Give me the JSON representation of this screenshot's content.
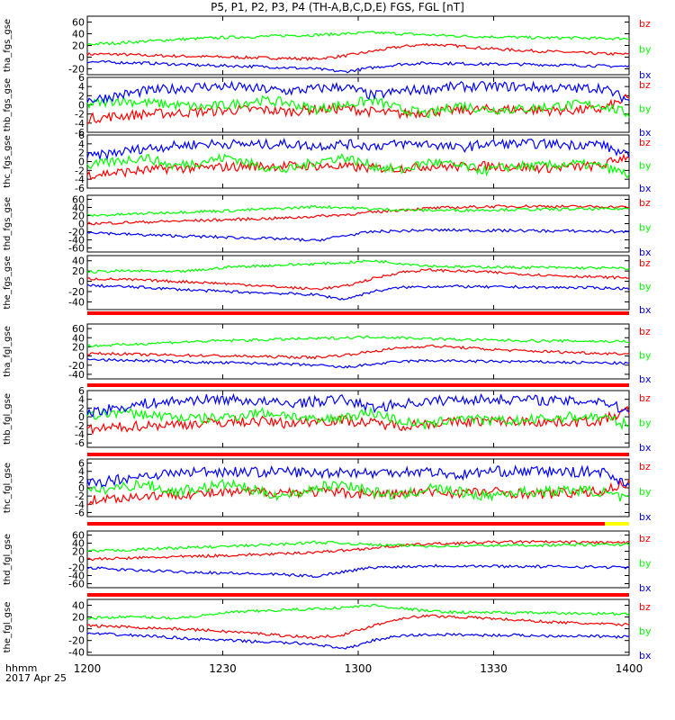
{
  "title": "P5, P1, P2, P3, P4 (TH-A,B,C,D,E) FGS, FGL [nT]",
  "footer": {
    "time_label": "hhmm",
    "date_label": "2017 Apr 25"
  },
  "chart_data": {
    "type": "line",
    "title": "P5, P1, P2, P3, P4 (TH-A,B,C,D,E) FGS, FGL [nT]",
    "xaxis": {
      "range_hhmm": [
        "1200",
        "1400"
      ],
      "ticks": [
        "1200",
        "1230",
        "1300",
        "1330",
        "1400"
      ]
    },
    "series_colors": {
      "bx": "#0000ff",
      "by": "#00ff00",
      "bz": "#ff0000"
    },
    "panels": [
      {
        "ylabel": "tha_fgs_gse",
        "ylim": [
          -30,
          70
        ],
        "yticks": [
          60,
          40,
          20,
          0,
          -20
        ],
        "series": [
          {
            "name": "bz",
            "values": [
              5,
              5,
              3,
              2,
              1,
              0,
              -1,
              -2,
              -3,
              2,
              10,
              18,
              22,
              19,
              15,
              12,
              10,
              8,
              6,
              5
            ]
          },
          {
            "name": "by",
            "values": [
              22,
              24,
              27,
              30,
              32,
              34,
              35,
              37,
              38,
              40,
              42,
              40,
              38,
              36,
              35,
              34,
              33,
              33,
              32,
              32
            ]
          },
          {
            "name": "bx",
            "values": [
              -8,
              -9,
              -10,
              -12,
              -14,
              -15,
              -16,
              -18,
              -20,
              -25,
              -18,
              -12,
              -10,
              -11,
              -12,
              -12,
              -13,
              -14,
              -15,
              -16
            ]
          }
        ]
      },
      {
        "ylabel": "thb_fgs_gse",
        "ylim": [
          -6,
          6
        ],
        "yticks": [
          6,
          4,
          2,
          0,
          -2,
          -4,
          -6
        ],
        "series": [
          {
            "name": "bz",
            "values": [
              -3,
              -2.5,
              -2,
              -1.8,
              -1.5,
              -1.2,
              -1,
              -1.5,
              -1,
              -0.8,
              -1.5,
              -2,
              -1.5,
              -1.2,
              -1,
              -1,
              -1.2,
              -1.2,
              -1,
              1.5
            ]
          },
          {
            "name": "by",
            "values": [
              0,
              1,
              0.5,
              0,
              -0.5,
              0,
              1,
              0.5,
              -1,
              0,
              1,
              -1,
              -2,
              0,
              -1,
              -1,
              -0.5,
              0,
              0,
              -2
            ]
          },
          {
            "name": "bx",
            "values": [
              1,
              2,
              3,
              3.5,
              4,
              4,
              3.5,
              3,
              3.5,
              4,
              2,
              3,
              3.5,
              4,
              4,
              4,
              3.8,
              3.5,
              3.8,
              1
            ]
          }
        ]
      },
      {
        "ylabel": "thc_fgs_gse",
        "ylim": [
          -6,
          6
        ],
        "yticks": [
          6,
          4,
          2,
          0,
          -2,
          -4,
          -6
        ],
        "series": [
          {
            "name": "bz",
            "values": [
              -3,
              -2.5,
              -2,
              -1.5,
              -1.5,
              -1.2,
              -1,
              -1,
              -1,
              -1.2,
              -1.5,
              -1.5,
              -1,
              -1.2,
              -1,
              -1.2,
              -1.5,
              -1.2,
              -1,
              1.5
            ]
          },
          {
            "name": "by",
            "values": [
              -1,
              0,
              1,
              -1,
              0,
              1,
              -1,
              -2,
              0,
              1,
              -1,
              -2,
              0,
              -1,
              -2,
              -1,
              -1,
              -0.5,
              -1,
              -3
            ]
          },
          {
            "name": "bx",
            "values": [
              1,
              2,
              3,
              3.5,
              4,
              4,
              3.8,
              4,
              3.5,
              4,
              3.5,
              4,
              4,
              3,
              4,
              4,
              4,
              3.8,
              4,
              1
            ]
          }
        ]
      },
      {
        "ylabel": "thd_fgs_gse",
        "ylim": [
          -70,
          70
        ],
        "yticks": [
          60,
          40,
          20,
          0,
          -20,
          -40,
          -60
        ],
        "series": [
          {
            "name": "bz",
            "values": [
              0,
              2,
              4,
              6,
              8,
              10,
              12,
              14,
              18,
              22,
              28,
              34,
              38,
              40,
              42,
              43,
              43,
              42,
              42,
              41
            ]
          },
          {
            "name": "by",
            "values": [
              20,
              22,
              25,
              28,
              30,
              32,
              35,
              38,
              42,
              40,
              36,
              34,
              33,
              33,
              34,
              35,
              35,
              36,
              36,
              37
            ]
          },
          {
            "name": "bx",
            "values": [
              -20,
              -25,
              -28,
              -30,
              -32,
              -34,
              -36,
              -38,
              -42,
              -30,
              -20,
              -18,
              -16,
              -16,
              -17,
              -17,
              -18,
              -18,
              -19,
              -20
            ]
          }
        ]
      },
      {
        "ylabel": "the_fgs_gse",
        "ylim": [
          -55,
          50
        ],
        "yticks": [
          40,
          20,
          0,
          -20,
          -40
        ],
        "series": [
          {
            "name": "bz",
            "values": [
              5,
              4,
              2,
              0,
              -2,
              -5,
              -8,
              -12,
              -15,
              -10,
              5,
              18,
              22,
              20,
              18,
              15,
              12,
              10,
              8,
              7
            ]
          },
          {
            "name": "by",
            "values": [
              18,
              20,
              20,
              18,
              22,
              28,
              30,
              32,
              34,
              36,
              40,
              35,
              30,
              28,
              28,
              27,
              27,
              26,
              26,
              25
            ]
          },
          {
            "name": "bx",
            "values": [
              -8,
              -10,
              -12,
              -15,
              -18,
              -20,
              -22,
              -24,
              -26,
              -35,
              -20,
              -12,
              -10,
              -10,
              -11,
              -11,
              -12,
              -12,
              -13,
              -14
            ]
          }
        ]
      },
      {
        "ylabel": "tha_fgl_gse",
        "ylim": [
          -50,
          70
        ],
        "yticks": [
          60,
          40,
          20,
          0,
          -20,
          -40
        ],
        "series": [
          {
            "name": "bz",
            "values": [
              5,
              5,
              3,
              2,
              1,
              0,
              -1,
              -2,
              -3,
              2,
              10,
              18,
              22,
              19,
              15,
              12,
              10,
              8,
              6,
              5
            ]
          },
          {
            "name": "by",
            "values": [
              22,
              24,
              27,
              30,
              32,
              34,
              35,
              37,
              38,
              40,
              42,
              40,
              38,
              36,
              35,
              34,
              33,
              33,
              32,
              32
            ]
          },
          {
            "name": "bx",
            "values": [
              -8,
              -9,
              -10,
              -12,
              -14,
              -15,
              -16,
              -18,
              -20,
              -25,
              -18,
              -12,
              -10,
              -11,
              -12,
              -12,
              -13,
              -14,
              -15,
              -16
            ]
          }
        ]
      },
      {
        "ylabel": "thb_fgl_gse",
        "ylim": [
          -7,
          6
        ],
        "yticks": [
          6,
          4,
          2,
          0,
          -2,
          -4,
          -6
        ],
        "series": [
          {
            "name": "bz",
            "values": [
              -3,
              -2.5,
              -2,
              -1.8,
              -1.5,
              -1.2,
              -1,
              -1.5,
              -1,
              -0.8,
              -1.5,
              -2,
              -1.5,
              -1.2,
              -1,
              -1,
              -1.2,
              -1.2,
              -1,
              1.5
            ]
          },
          {
            "name": "by",
            "values": [
              0,
              1,
              0.5,
              0,
              -0.5,
              0,
              1,
              0.5,
              -1,
              0,
              1,
              -1,
              -2,
              0,
              -1,
              -1,
              -0.5,
              0,
              0,
              -2
            ]
          },
          {
            "name": "bx",
            "values": [
              1,
              2,
              3,
              3.5,
              4,
              4,
              3.5,
              3,
              3.5,
              4,
              2,
              3,
              3.5,
              4,
              4,
              4,
              3.8,
              3.5,
              3.8,
              1
            ]
          }
        ]
      },
      {
        "ylabel": "thc_fgl_gse",
        "ylim": [
          -7,
          7
        ],
        "yticks": [
          6,
          4,
          2,
          0,
          -2,
          -4,
          -6
        ],
        "series": [
          {
            "name": "bz",
            "values": [
              -3,
              -2.5,
              -2,
              -1.5,
              -1.5,
              -1.2,
              -1,
              -1,
              -1,
              -1.2,
              -1.5,
              -1.5,
              -1,
              -1.2,
              -1,
              -1.2,
              -1.5,
              -1.2,
              -1,
              1.5
            ]
          },
          {
            "name": "by",
            "values": [
              -1,
              0,
              1,
              -1,
              0,
              1,
              -1,
              -2,
              0,
              1,
              -1,
              -2,
              0,
              -1,
              -2,
              -1,
              -1,
              -0.5,
              -1,
              -3
            ]
          },
          {
            "name": "bx",
            "values": [
              1,
              2,
              3,
              3.5,
              4,
              4,
              3.8,
              4,
              3.5,
              4,
              3.5,
              4,
              4,
              3,
              4,
              4,
              4,
              3.8,
              4,
              1
            ]
          }
        ]
      },
      {
        "ylabel": "thd_fgl_gse",
        "ylim": [
          -70,
          70
        ],
        "yticks": [
          60,
          40,
          20,
          0,
          -20,
          -40,
          -60
        ],
        "series": [
          {
            "name": "bz",
            "values": [
              0,
              2,
              4,
              6,
              8,
              10,
              12,
              14,
              18,
              22,
              28,
              34,
              38,
              40,
              42,
              43,
              43,
              42,
              42,
              41
            ]
          },
          {
            "name": "by",
            "values": [
              20,
              22,
              25,
              28,
              30,
              32,
              35,
              38,
              42,
              40,
              36,
              34,
              33,
              33,
              34,
              35,
              35,
              36,
              36,
              37
            ]
          },
          {
            "name": "bx",
            "values": [
              -20,
              -25,
              -28,
              -30,
              -32,
              -34,
              -36,
              -38,
              -42,
              -30,
              -20,
              -18,
              -16,
              -16,
              -17,
              -17,
              -18,
              -18,
              -19,
              -20
            ]
          }
        ]
      },
      {
        "ylabel": "the_fgl_gse",
        "ylim": [
          -45,
          50
        ],
        "yticks": [
          40,
          20,
          0,
          -20,
          -40
        ],
        "series": [
          {
            "name": "bz",
            "values": [
              5,
              4,
              2,
              0,
              -2,
              -5,
              -8,
              -12,
              -15,
              -10,
              5,
              18,
              22,
              20,
              18,
              15,
              12,
              10,
              8,
              7
            ]
          },
          {
            "name": "by",
            "values": [
              18,
              20,
              20,
              18,
              22,
              28,
              30,
              32,
              34,
              36,
              40,
              35,
              30,
              28,
              28,
              27,
              27,
              26,
              26,
              25
            ]
          },
          {
            "name": "bx",
            "values": [
              -8,
              -10,
              -12,
              -15,
              -18,
              -20,
              -22,
              -24,
              -26,
              -35,
              -20,
              -12,
              -10,
              -10,
              -11,
              -11,
              -12,
              -12,
              -13,
              -14
            ]
          }
        ]
      }
    ]
  }
}
